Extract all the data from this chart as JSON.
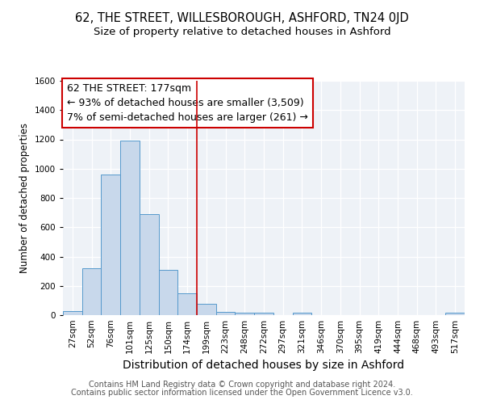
{
  "title": "62, THE STREET, WILLESBOROUGH, ASHFORD, TN24 0JD",
  "subtitle": "Size of property relative to detached houses in Ashford",
  "xlabel": "Distribution of detached houses by size in Ashford",
  "ylabel": "Number of detached properties",
  "categories": [
    "27sqm",
    "52sqm",
    "76sqm",
    "101sqm",
    "125sqm",
    "150sqm",
    "174sqm",
    "199sqm",
    "223sqm",
    "248sqm",
    "272sqm",
    "297sqm",
    "321sqm",
    "346sqm",
    "370sqm",
    "395sqm",
    "419sqm",
    "444sqm",
    "468sqm",
    "493sqm",
    "517sqm"
  ],
  "values": [
    25,
    320,
    960,
    1190,
    690,
    310,
    150,
    75,
    20,
    15,
    15,
    0,
    15,
    0,
    0,
    0,
    0,
    0,
    0,
    0,
    15
  ],
  "bar_color": "#c8d8eb",
  "bar_edgecolor": "#5599cc",
  "vline_index": 6.5,
  "vline_color": "#cc0000",
  "annotation_line1": "62 THE STREET: 177sqm",
  "annotation_line2": "← 93% of detached houses are smaller (3,509)",
  "annotation_line3": "7% of semi-detached houses are larger (261) →",
  "annotation_box_color": "#ffffff",
  "annotation_box_edgecolor": "#cc0000",
  "ylim": [
    0,
    1600
  ],
  "yticks": [
    0,
    200,
    400,
    600,
    800,
    1000,
    1200,
    1400,
    1600
  ],
  "background_color": "#eef2f7",
  "footer_line1": "Contains HM Land Registry data © Crown copyright and database right 2024.",
  "footer_line2": "Contains public sector information licensed under the Open Government Licence v3.0.",
  "title_fontsize": 10.5,
  "subtitle_fontsize": 9.5,
  "xlabel_fontsize": 10,
  "ylabel_fontsize": 8.5,
  "tick_fontsize": 7.5,
  "annotation_fontsize": 9,
  "footer_fontsize": 7
}
